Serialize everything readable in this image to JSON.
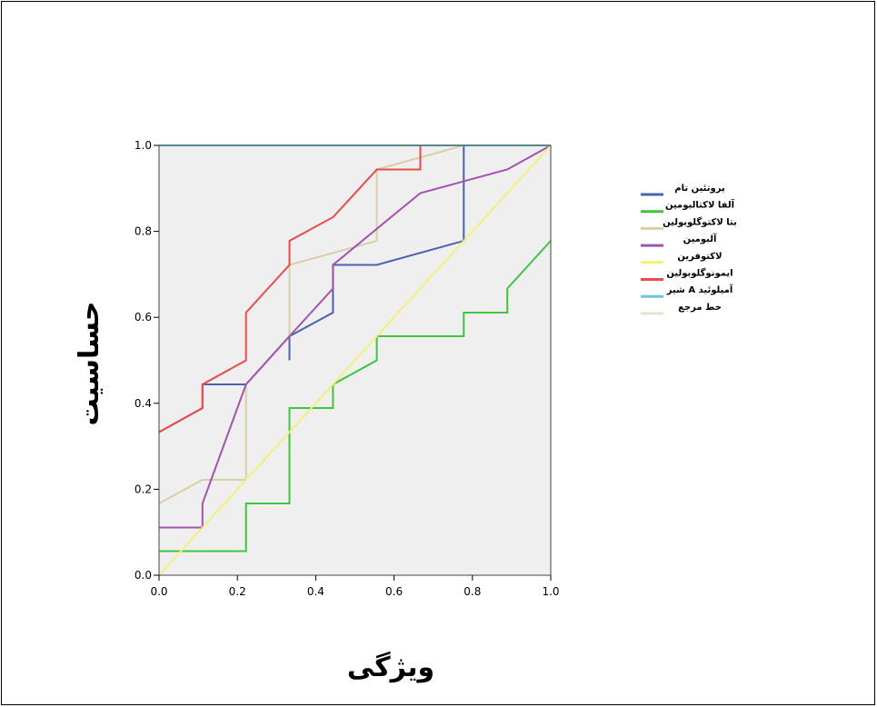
{
  "chart_data": {
    "type": "line",
    "xlabel": "ویژگی",
    "ylabel": "حساسیت",
    "xlim": [
      0,
      1
    ],
    "ylim": [
      0,
      1
    ],
    "xticks": [
      "0.0",
      "0.2",
      "0.4",
      "0.6",
      "0.8",
      "1.0"
    ],
    "yticks": [
      "0.0",
      "0.2",
      "0.4",
      "0.6",
      "0.8",
      "1.0"
    ],
    "grid": false,
    "legend_position": "right",
    "background_color": "#efefef",
    "series": [
      {
        "name": "پروتئین تام",
        "color": "#4a63b0",
        "points": [
          [
            0,
            0.333
          ],
          [
            0,
            0.333
          ],
          [
            0.111,
            0.389
          ],
          [
            0.111,
            0.444
          ],
          [
            0.222,
            0.444
          ],
          [
            0.333,
            0.556
          ],
          [
            0.333,
            0.5
          ],
          [
            0.333,
            0.556
          ],
          [
            0.444,
            0.611
          ],
          [
            0.444,
            0.722
          ],
          [
            0.556,
            0.722
          ],
          [
            0.778,
            0.778
          ],
          [
            0.778,
            1.0
          ],
          [
            1.0,
            1.0
          ]
        ]
      },
      {
        "name": "آلفا لاکتالبومین",
        "color": "#3ec43e",
        "points": [
          [
            0,
            0.056
          ],
          [
            0.222,
            0.056
          ],
          [
            0.222,
            0.167
          ],
          [
            0.333,
            0.167
          ],
          [
            0.333,
            0.389
          ],
          [
            0.444,
            0.389
          ],
          [
            0.444,
            0.444
          ],
          [
            0.556,
            0.5
          ],
          [
            0.556,
            0.556
          ],
          [
            0.778,
            0.556
          ],
          [
            0.778,
            0.611
          ],
          [
            0.889,
            0.611
          ],
          [
            0.889,
            0.667
          ],
          [
            1.0,
            0.778
          ]
        ]
      },
      {
        "name": "بتا لاکتوگلوبولین",
        "color": "#d9cfa3",
        "points": [
          [
            0,
            0.167
          ],
          [
            0.111,
            0.222
          ],
          [
            0.222,
            0.222
          ],
          [
            0.222,
            0.444
          ],
          [
            0.333,
            0.556
          ],
          [
            0.333,
            0.722
          ],
          [
            0.556,
            0.778
          ],
          [
            0.556,
            0.944
          ],
          [
            0.778,
            1.0
          ],
          [
            1.0,
            1.0
          ]
        ]
      },
      {
        "name": "آلبومین",
        "color": "#a253b0",
        "points": [
          [
            0,
            0.111
          ],
          [
            0.111,
            0.111
          ],
          [
            0.111,
            0.167
          ],
          [
            0.222,
            0.444
          ],
          [
            0.333,
            0.556
          ],
          [
            0.444,
            0.667
          ],
          [
            0.444,
            0.722
          ],
          [
            0.556,
            0.806
          ],
          [
            0.667,
            0.889
          ],
          [
            0.889,
            0.944
          ],
          [
            1.0,
            1.0
          ]
        ]
      },
      {
        "name": "لاکتوفرین",
        "color": "#f2f27a",
        "points": [
          [
            0,
            0
          ],
          [
            0,
            0
          ],
          [
            1.0,
            1.0
          ]
        ]
      },
      {
        "name": "ایمونوگلوبولین",
        "color": "#ee4a4a",
        "points": [
          [
            0,
            0.333
          ],
          [
            0.111,
            0.389
          ],
          [
            0.111,
            0.444
          ],
          [
            0.222,
            0.5
          ],
          [
            0.222,
            0.611
          ],
          [
            0.278,
            0.667
          ],
          [
            0.333,
            0.722
          ],
          [
            0.333,
            0.778
          ],
          [
            0.444,
            0.833
          ],
          [
            0.556,
            0.944
          ],
          [
            0.667,
            0.944
          ],
          [
            0.667,
            1.0
          ],
          [
            1.0,
            1.0
          ]
        ]
      },
      {
        "name": "آمیلوئید A شیر",
        "color": "#6bc7d6",
        "points": [
          [
            0,
            1.0
          ],
          [
            1.0,
            1.0
          ]
        ]
      },
      {
        "name": "خط مرجع",
        "color": "#e8e2d0",
        "points": [
          [
            0,
            0
          ],
          [
            1.0,
            1.0
          ]
        ]
      }
    ]
  }
}
